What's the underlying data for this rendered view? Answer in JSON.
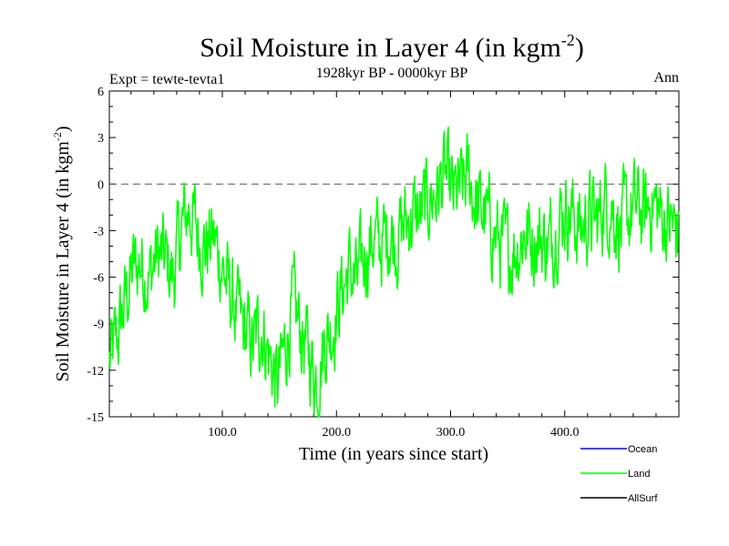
{
  "chart_data": {
    "type": "line",
    "title": "Soil Moisture in Layer 4 (in kgm",
    "title_sup": "-2",
    "title_end": ")",
    "subtitle_left": "Expt = tewte-tevta1",
    "subtitle_center": "1928kyr BP - 0000kyr BP",
    "subtitle_right": "Ann",
    "xlabel": "Time (in years since start)",
    "ylabel": "Soil Moisture in Layer 4 (in kgm",
    "ylabel_sup": "-2",
    "ylabel_end": ")",
    "xlim": [
      1,
      500
    ],
    "ylim": [
      -15,
      6
    ],
    "x_ticks": [
      100,
      200,
      300,
      400
    ],
    "x_tick_labels": [
      "100.0",
      "200.0",
      "300.0",
      "400.0"
    ],
    "y_ticks": [
      -15,
      -12,
      -9,
      -6,
      -3,
      0,
      3,
      6
    ],
    "y_tick_labels": [
      "-15",
      "-12",
      "-9",
      "-6",
      "-3",
      "0",
      "3",
      "6"
    ],
    "reference_line": 0,
    "legend": [
      {
        "name": "Ocean",
        "color": "#0000ff"
      },
      {
        "name": "Land",
        "color": "#00ff00"
      },
      {
        "name": "AllSurf",
        "color": "#000000"
      }
    ],
    "series": [
      {
        "name": "Land",
        "color": "#00ff00",
        "x": [
          1,
          8,
          15,
          22,
          29,
          36,
          43,
          50,
          57,
          64,
          71,
          78,
          85,
          92,
          99,
          106,
          113,
          120,
          127,
          134,
          141,
          148,
          155,
          162,
          169,
          176,
          183,
          190,
          197,
          204,
          211,
          218,
          225,
          232,
          239,
          246,
          253,
          260,
          267,
          274,
          281,
          288,
          295,
          302,
          309,
          316,
          323,
          330,
          337,
          344,
          351,
          358,
          365,
          372,
          379,
          386,
          393,
          400,
          407,
          414,
          421,
          428,
          435,
          442,
          449,
          456,
          463,
          470,
          477,
          484,
          491,
          498
        ],
        "values": [
          -11.5,
          -10,
          -7.5,
          -5.5,
          -5,
          -6,
          -4.5,
          -5,
          -6,
          -3,
          -1.5,
          -3,
          -4,
          -3.5,
          -5,
          -7,
          -8.5,
          -9.5,
          -10.5,
          -9,
          -11,
          -13,
          -10.5,
          -8,
          -9.5,
          -11,
          -12.5,
          -10,
          -9,
          -7,
          -5.5,
          -6.5,
          -4.5,
          -3.5,
          -4,
          -3,
          -3.5,
          -2.5,
          -2,
          -2,
          -1,
          -0.5,
          0.5,
          -1,
          -0.5,
          0.5,
          -1.5,
          -2,
          -3,
          -4,
          -4.5,
          -4,
          -3,
          -3.5,
          -3.5,
          -4,
          -2.5,
          -1.5,
          -2,
          -3,
          -2,
          -2.5,
          -1,
          -1.5,
          -3,
          -2,
          -1.5,
          -2,
          -1,
          -2,
          -2.5,
          -3
        ]
      }
    ]
  }
}
